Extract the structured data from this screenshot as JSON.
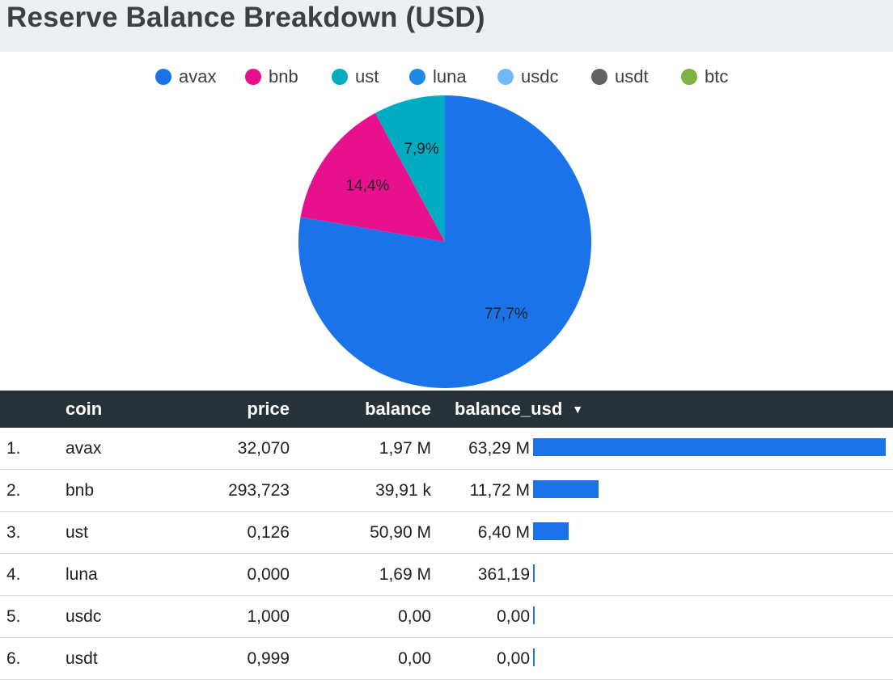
{
  "title": "Reserve Balance Breakdown (USD)",
  "legend": [
    {
      "label": "avax",
      "color": "#1a73e8"
    },
    {
      "label": "bnb",
      "color": "#e8118d"
    },
    {
      "label": "ust",
      "color": "#00acc1"
    },
    {
      "label": "luna",
      "color": "#1e88e5"
    },
    {
      "label": "usdc",
      "color": "#74b9f7"
    },
    {
      "label": "usdt",
      "color": "#5f6368"
    },
    {
      "label": "btc",
      "color": "#7cb342"
    }
  ],
  "chart_data": {
    "type": "pie",
    "slices": [
      {
        "label": "avax",
        "value": 77.7,
        "display": "77,7%",
        "color": "#1a73e8"
      },
      {
        "label": "bnb",
        "value": 14.4,
        "display": "14,4%",
        "color": "#e8118d"
      },
      {
        "label": "ust",
        "value": 7.9,
        "display": "7,9%",
        "color": "#00acc1"
      }
    ]
  },
  "table": {
    "headers": {
      "coin": "coin",
      "price": "price",
      "balance": "balance",
      "balance_usd": "balance_usd"
    },
    "sort_icon": "sort-descending-icon",
    "bar_color": "#1a73e8",
    "rows": [
      {
        "index": "1.",
        "coin": "avax",
        "price": "32,070",
        "balance": "1,97 M",
        "balance_usd": "63,29 M",
        "bar_fraction": 1.0
      },
      {
        "index": "2.",
        "coin": "bnb",
        "price": "293,723",
        "balance": "39,91 k",
        "balance_usd": "11,72 M",
        "bar_fraction": 0.185
      },
      {
        "index": "3.",
        "coin": "ust",
        "price": "0,126",
        "balance": "50,90 M",
        "balance_usd": "6,40 M",
        "bar_fraction": 0.101
      },
      {
        "index": "4.",
        "coin": "luna",
        "price": "0,000",
        "balance": "1,69 M",
        "balance_usd": "361,19",
        "bar_fraction": 0.0
      },
      {
        "index": "5.",
        "coin": "usdc",
        "price": "1,000",
        "balance": "0,00",
        "balance_usd": "0,00",
        "bar_fraction": 0.0
      },
      {
        "index": "6.",
        "coin": "usdt",
        "price": "0,999",
        "balance": "0,00",
        "balance_usd": "0,00",
        "bar_fraction": 0.0
      }
    ]
  }
}
